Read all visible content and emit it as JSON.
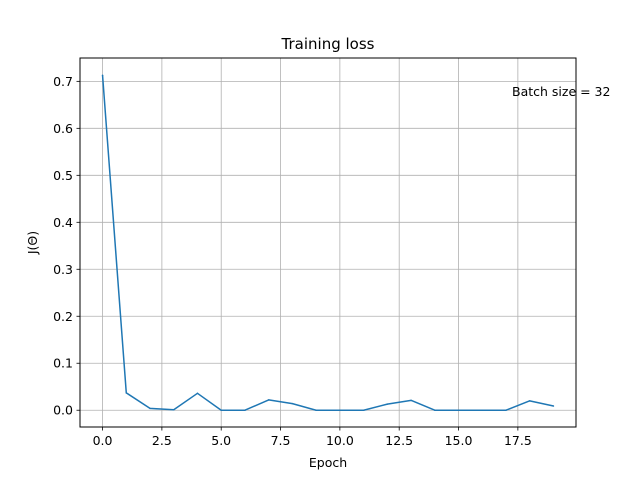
{
  "chart_data": {
    "type": "line",
    "title": "Training loss",
    "xlabel": "Epoch",
    "ylabel": "J(Θ)",
    "annotation": "Batch size = 32",
    "grid": true,
    "xlim": [
      -0.95,
      19.95
    ],
    "ylim": [
      -0.0357,
      0.7497
    ],
    "xticks": [
      0.0,
      2.5,
      5.0,
      7.5,
      10.0,
      12.5,
      15.0,
      17.5
    ],
    "xtick_labels": [
      "0.0",
      "2.5",
      "5.0",
      "7.5",
      "10.0",
      "12.5",
      "15.0",
      "17.5"
    ],
    "yticks": [
      0.0,
      0.1,
      0.2,
      0.3,
      0.4,
      0.5,
      0.6,
      0.7
    ],
    "ytick_labels": [
      "0.0",
      "0.1",
      "0.2",
      "0.3",
      "0.4",
      "0.5",
      "0.6",
      "0.7"
    ],
    "series": [
      {
        "color": "#1f77b4",
        "x": [
          0,
          1,
          2,
          3,
          4,
          5,
          6,
          7,
          8,
          9,
          10,
          11,
          12,
          13,
          14,
          15,
          16,
          17,
          18,
          19
        ],
        "values": [
          0.713,
          0.037,
          0.004,
          0.001,
          0.036,
          0.0,
          0.0,
          0.022,
          0.014,
          0.0,
          0.0,
          0.0,
          0.013,
          0.021,
          0.0,
          0.0,
          0.0,
          0.0,
          0.02,
          0.009
        ]
      }
    ]
  }
}
